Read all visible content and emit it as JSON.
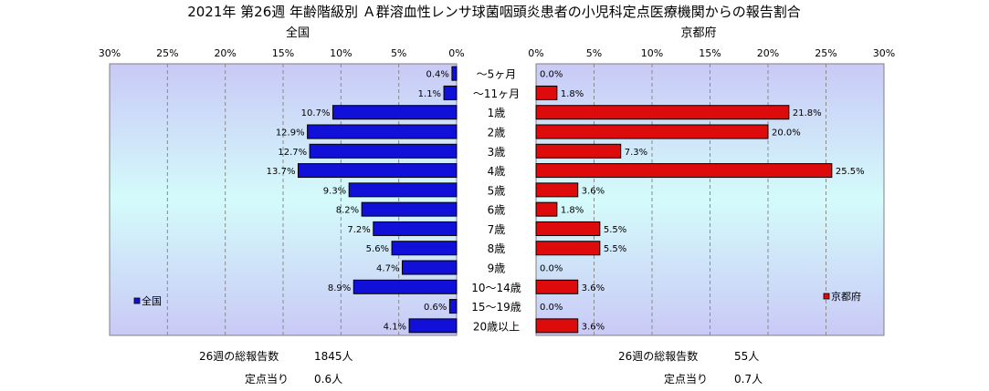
{
  "title": "2021年 第26週 年齢階級別 Ａ群溶血性レンサ球菌咽頭炎患者の小児科定点医療機関からの報告割合",
  "colors": {
    "national_bar": "#1010d8",
    "kyoto_bar": "#dd0b0b",
    "plot_top": "#c9c9f6",
    "plot_mid": "#d4fbfb",
    "plot_bottom": "#c9c9f6"
  },
  "chart_data": [
    {
      "type": "bar",
      "orientation": "horizontal",
      "direction": "right-to-left",
      "title": "全国",
      "xlim": [
        0,
        30
      ],
      "xticks": [
        "30%",
        "25%",
        "20%",
        "15%",
        "10%",
        "5%",
        "0%"
      ],
      "categories": [
        "～5ヶ月",
        "～11ヶ月",
        "1歳",
        "2歳",
        "3歳",
        "4歳",
        "5歳",
        "6歳",
        "7歳",
        "8歳",
        "9歳",
        "10～14歳",
        "15～19歳",
        "20歳以上"
      ],
      "series": [
        {
          "name": "全国",
          "values": [
            0.4,
            1.1,
            10.7,
            12.9,
            12.7,
            13.7,
            9.3,
            8.2,
            7.2,
            5.6,
            4.7,
            8.9,
            0.6,
            4.1
          ]
        }
      ],
      "labels": [
        "0.4%",
        "1.1%",
        "10.7%",
        "12.9%",
        "12.7%",
        "13.7%",
        "9.3%",
        "8.2%",
        "7.2%",
        "5.6%",
        "4.7%",
        "8.9%",
        "0.6%",
        "4.1%"
      ],
      "legend": "bottom-left",
      "grid": true
    },
    {
      "type": "bar",
      "orientation": "horizontal",
      "direction": "left-to-right",
      "title": "京都府",
      "xlim": [
        0,
        30
      ],
      "xticks": [
        "0%",
        "5%",
        "10%",
        "15%",
        "20%",
        "25%",
        "30%"
      ],
      "categories": [
        "～5ヶ月",
        "～11ヶ月",
        "1歳",
        "2歳",
        "3歳",
        "4歳",
        "5歳",
        "6歳",
        "7歳",
        "8歳",
        "9歳",
        "10～14歳",
        "15～19歳",
        "20歳以上"
      ],
      "series": [
        {
          "name": "京都府",
          "values": [
            0.0,
            1.8,
            21.8,
            20.0,
            7.3,
            25.5,
            3.6,
            1.8,
            5.5,
            5.5,
            0.0,
            3.6,
            0.0,
            3.6
          ]
        }
      ],
      "labels": [
        "0.0%",
        "1.8%",
        "21.8%",
        "20.0%",
        "7.3%",
        "25.5%",
        "3.6%",
        "1.8%",
        "5.5%",
        "5.5%",
        "0.0%",
        "3.6%",
        "0.0%",
        "3.6%"
      ],
      "legend": "bottom-right",
      "grid": true
    }
  ],
  "footer": {
    "national": {
      "total_label": "26週の総報告数",
      "total_value": "1845人",
      "per_label": "定点当り",
      "per_value": "0.6人"
    },
    "kyoto": {
      "total_label": "26週の総報告数",
      "total_value": "55人",
      "per_label": "定点当り",
      "per_value": "0.7人"
    }
  }
}
